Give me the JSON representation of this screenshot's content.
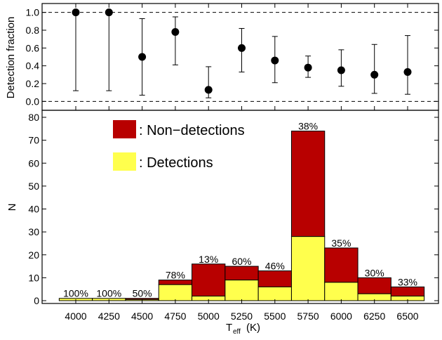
{
  "chart_data": [
    {
      "type": "scatter",
      "ylabel": "Detection fraction",
      "ylim": [
        -0.1,
        1.1
      ],
      "yticks": [
        "0.0",
        "0.2",
        "0.4",
        "0.6",
        "0.8",
        "1.0"
      ],
      "reference_lines": [
        0.0,
        1.0
      ],
      "x": [
        4000,
        4250,
        4500,
        4750,
        5000,
        5250,
        5500,
        5750,
        6000,
        6250,
        6500
      ],
      "values": [
        1.0,
        1.0,
        0.5,
        0.78,
        0.13,
        0.6,
        0.46,
        0.38,
        0.35,
        0.3,
        0.33
      ],
      "err_low": [
        0.12,
        0.12,
        0.07,
        0.41,
        0.04,
        0.33,
        0.21,
        0.27,
        0.17,
        0.09,
        0.08
      ],
      "err_high": [
        1.0,
        1.0,
        0.93,
        0.95,
        0.39,
        0.82,
        0.73,
        0.51,
        0.58,
        0.64,
        0.74
      ]
    },
    {
      "type": "bar",
      "stacked": true,
      "xlabel_main": "T",
      "xlabel_sub": "eff",
      "xlabel_unit": "(K)",
      "ylabel": "N",
      "ylim": [
        0,
        80
      ],
      "yticks": [
        "0",
        "10",
        "20",
        "30",
        "40",
        "50",
        "60",
        "70",
        "80"
      ],
      "categories": [
        "4000",
        "4250",
        "4500",
        "4750",
        "5000",
        "5250",
        "5500",
        "5750",
        "6000",
        "6250",
        "6500"
      ],
      "series": [
        {
          "name": ": Detections",
          "color": "#ffff4d",
          "values": [
            1,
            1,
            0.5,
            7,
            2,
            9,
            6,
            28,
            8,
            3,
            2
          ]
        },
        {
          "name": ": Non−detections",
          "color": "#b80000",
          "values": [
            0,
            0,
            0.5,
            2,
            14,
            6,
            7,
            46,
            15,
            7,
            4
          ]
        }
      ],
      "percent_labels": [
        "100%",
        "100%",
        "50%",
        "78%",
        "13%",
        "60%",
        "46%",
        "38%",
        "35%",
        "30%",
        "33%"
      ],
      "legend_position": "top-left"
    }
  ]
}
